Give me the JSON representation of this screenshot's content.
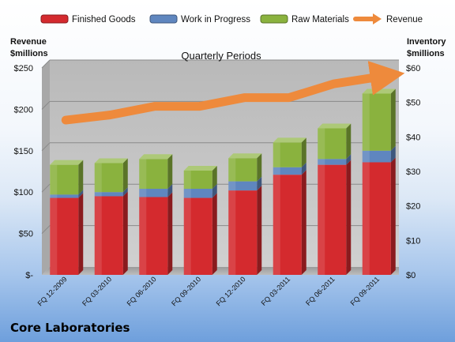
{
  "company": "Core Laboratories",
  "chart_data": {
    "type": "bar",
    "stacked": true,
    "title": "Quarterly Periods",
    "y_left_label": [
      "Revenue",
      "$millions"
    ],
    "y_right_label": [
      "Inventory",
      "$millions"
    ],
    "categories": [
      "FQ 12-2009",
      "FQ 03-2010",
      "FQ 06-2010",
      "FQ 09-2010",
      "FQ 12-2010",
      "FQ 03-2011",
      "FQ 06-2011",
      "FQ 09-2011"
    ],
    "y_left_ticks": [
      "$-",
      "$50",
      "$100",
      "$150",
      "$200",
      "$250"
    ],
    "y_left_range": [
      0,
      250
    ],
    "y_right_ticks": [
      "$0",
      "$10",
      "$20",
      "$30",
      "$40",
      "$50",
      "$60"
    ],
    "y_right_range": [
      0,
      60
    ],
    "series": [
      {
        "name": "Finished Goods",
        "axis": "left",
        "kind": "bar",
        "color": "#d42a2e",
        "values": [
          93,
          95,
          94,
          93,
          102,
          121,
          133,
          136
        ]
      },
      {
        "name": "Work in Progress",
        "axis": "left",
        "kind": "bar",
        "color": "#5f86bf",
        "values": [
          4,
          5,
          10,
          11,
          11,
          9,
          7,
          14
        ]
      },
      {
        "name": "Raw Materials",
        "axis": "left",
        "kind": "bar",
        "color": "#8ab23e",
        "values": [
          36,
          35,
          36,
          22,
          28,
          30,
          37,
          69
        ]
      },
      {
        "name": "Revenue",
        "axis": "right",
        "kind": "line",
        "color": "#ee8a3c",
        "values": [
          43.5,
          45,
          47.5,
          47.5,
          50,
          50,
          54,
          56
        ]
      }
    ],
    "grid": true,
    "legend_position": "top"
  }
}
